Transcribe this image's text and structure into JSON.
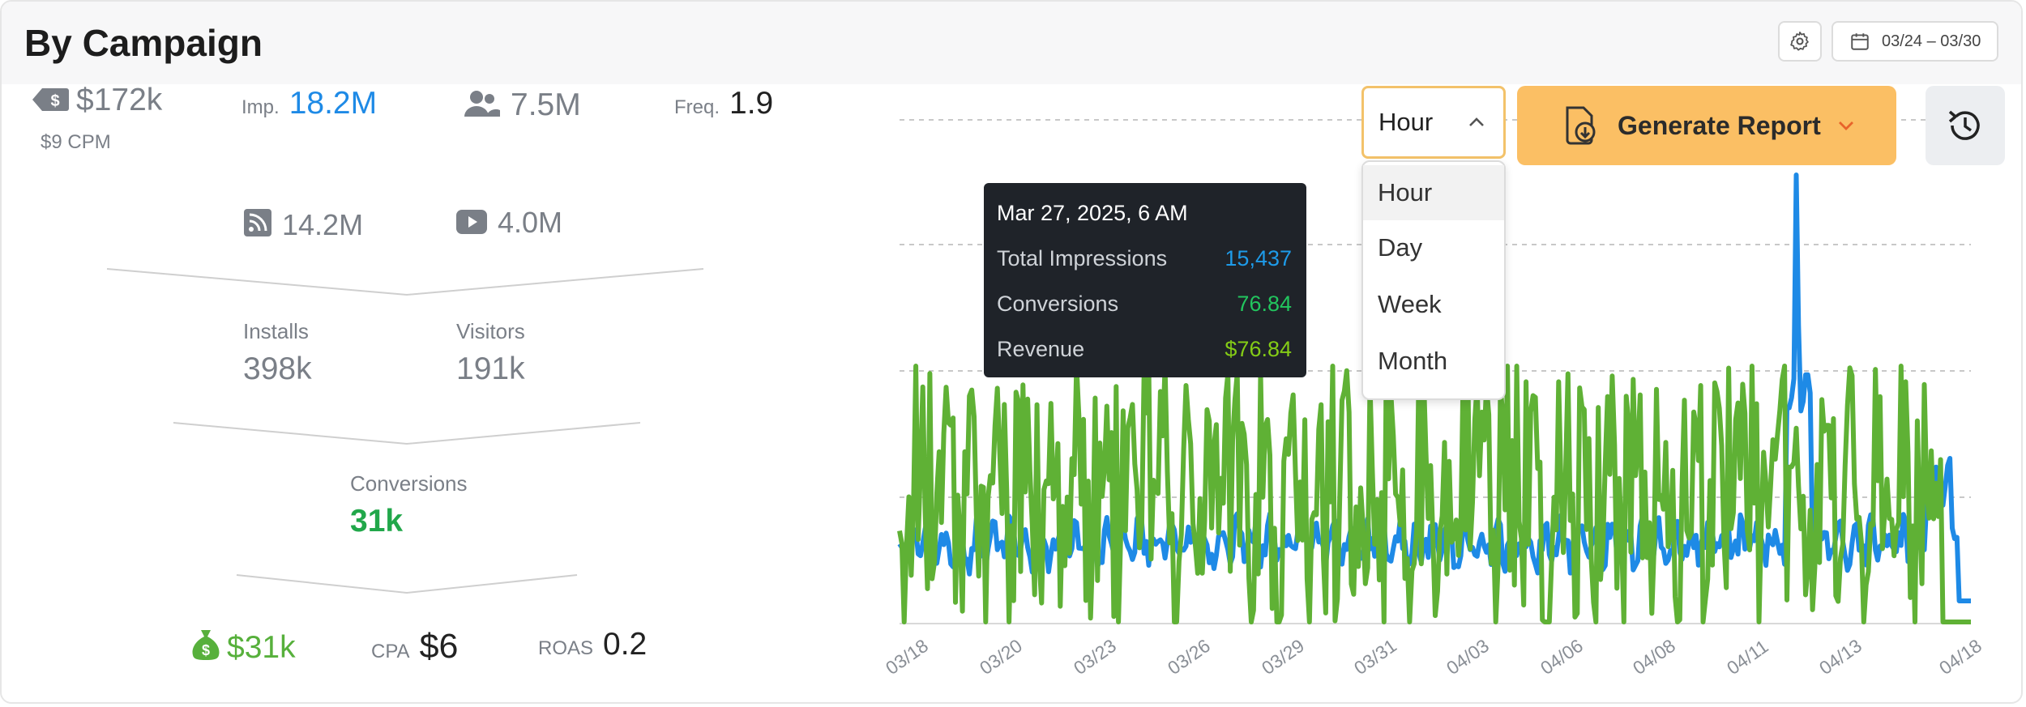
{
  "header": {
    "title": "By Campaign",
    "date_range": "03/24 – 03/30",
    "settings_icon": "gear-icon",
    "calendar_icon": "calendar-icon"
  },
  "stats": {
    "spend": "$172k",
    "cpm": "$9 CPM",
    "imp_label": "Imp.",
    "impressions": "18.2M",
    "reach": "7.5M",
    "freq_label": "Freq.",
    "frequency": "1.9",
    "display_imps": "14.2M",
    "video_imps": "4.0M"
  },
  "funnel": {
    "installs_label": "Installs",
    "installs": "398k",
    "visitors_label": "Visitors",
    "visitors": "191k",
    "conversions_label": "Conversions",
    "conversions": "31k",
    "revenue": "$31k",
    "cpa_label": "CPA",
    "cpa": "$6",
    "roas_label": "ROAS",
    "roas": "0.2"
  },
  "controls": {
    "granularity_selected": "Hour",
    "granularity_options": [
      "Hour",
      "Day",
      "Week",
      "Month"
    ],
    "generate_report_label": "Generate Report",
    "history_icon": "history-icon"
  },
  "tooltip": {
    "title": "Mar 27, 2025, 6 AM",
    "rows": [
      {
        "label": "Total Impressions",
        "value": "15,437",
        "color": "#1e9be9"
      },
      {
        "label": "Conversions",
        "value": "76.84",
        "color": "#22c55e"
      },
      {
        "label": "Revenue",
        "value": "$76.84",
        "color": "#84cc16"
      }
    ]
  },
  "colors": {
    "impressions_series": "#1e8ae6",
    "conversions_series": "#5fb135",
    "accent_orange": "#fbbf64"
  },
  "chart_data": {
    "type": "line",
    "x_tick_labels": [
      "03/18",
      "03/20",
      "03/23",
      "03/26",
      "03/29",
      "03/31",
      "04/03",
      "04/06",
      "04/08",
      "04/11",
      "04/13",
      "04/18"
    ],
    "grid": "horizontal dashed",
    "series": [
      {
        "color": "#1e8ae6",
        "description_key": "impressions"
      },
      {
        "color": "#5fb135",
        "description_key": "conversions"
      }
    ]
  }
}
